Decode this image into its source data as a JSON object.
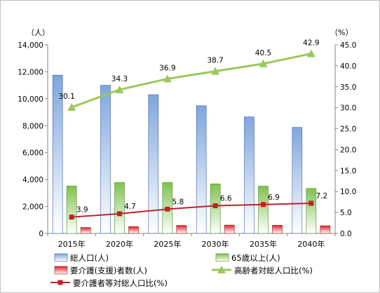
{
  "chart_data": {
    "type": "bar",
    "categories": [
      "2015年",
      "2020年",
      "2025年",
      "2030年",
      "2035年",
      "2040年"
    ],
    "y_left_unit": "（人）",
    "y_right_unit": "（%）",
    "ylim_left": [
      0,
      14000
    ],
    "ylim_right": [
      0,
      45
    ],
    "y_left_ticks": [
      "0",
      "2,000",
      "4,000",
      "6,000",
      "8,000",
      "10,000",
      "12,000",
      "14,000"
    ],
    "y_right_ticks": [
      "0.0",
      "5.0",
      "10.0",
      "15.0",
      "20.0",
      "25.0",
      "30.0",
      "35.0",
      "40.0",
      "45.0"
    ],
    "series": [
      {
        "name": "総人口(人)",
        "axis": "left",
        "kind": "bar",
        "color": "#7fa6de",
        "values": [
          11750,
          11000,
          10300,
          9480,
          8650,
          7870
        ]
      },
      {
        "name": "65歳以上(人)",
        "axis": "left",
        "kind": "bar",
        "color": "#7fc24f",
        "values": [
          3520,
          3780,
          3780,
          3680,
          3510,
          3340
        ]
      },
      {
        "name": "要介護(支援)者数(人)",
        "axis": "left",
        "kind": "bar",
        "color": "#e0202a",
        "values": [
          440,
          510,
          600,
          620,
          610,
          570
        ]
      },
      {
        "name": "高齢者対総人口比(%)",
        "axis": "right",
        "kind": "line",
        "color": "#9bc85a",
        "values": [
          30.1,
          34.3,
          36.9,
          38.7,
          40.5,
          42.9
        ],
        "labels": [
          "30.1",
          "34.3",
          "36.9",
          "38.7",
          "40.5",
          "42.9"
        ]
      },
      {
        "name": "要介護者等対総人口比(%)",
        "axis": "right",
        "kind": "line",
        "color": "#c0202a",
        "values": [
          3.9,
          4.7,
          5.8,
          6.6,
          6.9,
          7.2
        ],
        "labels": [
          "3.9",
          "4.7",
          "5.8",
          "6.6",
          "6.9",
          "7.2"
        ]
      }
    ],
    "grid": false,
    "legend_position": "bottom"
  }
}
